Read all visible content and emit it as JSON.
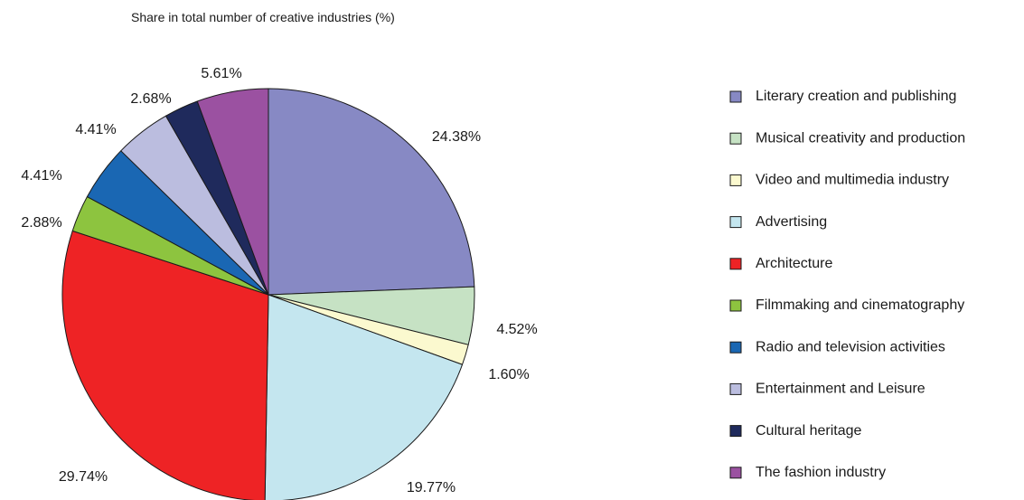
{
  "chart_data": {
    "type": "pie",
    "title": "Share in total number of creative industries (%)",
    "start_angle_deg": 0,
    "direction": "clockwise",
    "legend_position": "right",
    "slices": [
      {
        "name": "Literary creation and publishing",
        "value": 24.38,
        "label": "24.38%",
        "color": "#8789c4"
      },
      {
        "name": "Musical creativity and production",
        "value": 4.52,
        "label": "4.52%",
        "color": "#c6e2c4"
      },
      {
        "name": "Video and multimedia industry",
        "value": 1.6,
        "label": "1.60%",
        "color": "#fbf9cf"
      },
      {
        "name": "Advertising",
        "value": 19.77,
        "label": "19.77%",
        "color": "#c4e6ef"
      },
      {
        "name": "Architecture",
        "value": 29.74,
        "label": "29.74%",
        "color": "#ee2325"
      },
      {
        "name": "Filmmaking and cinematography",
        "value": 2.88,
        "label": "2.88%",
        "color": "#8dc43f"
      },
      {
        "name": "Radio and television activities",
        "value": 4.41,
        "label": "4.41%",
        "color": "#1a67b3"
      },
      {
        "name": "Entertainment and Leisure",
        "value": 4.41,
        "label": "4.41%",
        "color": "#bbbddf"
      },
      {
        "name": "Cultural heritage",
        "value": 2.68,
        "label": "2.68%",
        "color": "#1f2a5c"
      },
      {
        "name": "The fashion industry",
        "value": 5.61,
        "label": "5.61%",
        "color": "#9b51a1"
      }
    ]
  }
}
